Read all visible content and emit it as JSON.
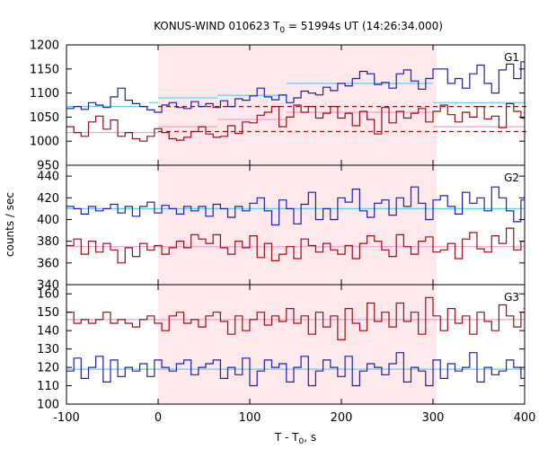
{
  "chart_data": {
    "type": "line",
    "title_prefix": "KONUS-WIND 010623 T",
    "title_sub": "0",
    "title_suffix": " = 51994s UT (14:26:34.000)",
    "xlabel_prefix": "T - T",
    "xlabel_sub": "0",
    "xlabel_suffix": ", s",
    "ylabel": "counts / sec",
    "xlim": [
      -100,
      400
    ],
    "xticks": [
      "-100",
      "0",
      "100",
      "200",
      "300",
      "400"
    ],
    "highlight_interval": [
      0,
      304
    ],
    "colors": {
      "highlight": "#fde8ec",
      "blue": "#1f1fa8",
      "red": "#9b0d14",
      "blue_fit": "#66ccee",
      "red_fit": "#ff99cc",
      "dashed": "#9b0d14"
    },
    "panels": [
      {
        "label": "G1",
        "ylim": [
          950,
          1200
        ],
        "yticks": [
          "950",
          "1000",
          "1050",
          "1100",
          "1150",
          "1200"
        ],
        "series": [
          {
            "color": "blue",
            "bin_width": 8,
            "x_start": -100,
            "values": [
              1068,
              1072,
              1066,
              1080,
              1075,
              1070,
              1092,
              1110,
              1085,
              1078,
              1072,
              1065,
              1060,
              1075,
              1080,
              1070,
              1068,
              1082,
              1072,
              1078,
              1070,
              1084,
              1072,
              1088,
              1085,
              1094,
              1110,
              1092,
              1086,
              1096,
              1080,
              1090,
              1104,
              1100,
              1096,
              1112,
              1105,
              1120,
              1115,
              1130,
              1145,
              1140,
              1118,
              1122,
              1110,
              1140,
              1148,
              1125,
              1108,
              1130,
              1150,
              1150,
              1120,
              1130,
              1110,
              1140,
              1158,
              1120,
              1100,
              1148,
              1160,
              1130,
              1165,
              1120,
              1080,
              1085,
              1092,
              1080,
              1098,
              1096,
              1098,
              1086,
              1094,
              1075,
              1092,
              1085,
              1100,
              1090,
              1078,
              1102,
              1098,
              1080
            ]
          },
          {
            "color": "red",
            "bin_width": 8,
            "x_start": -100,
            "values": [
              1030,
              1018,
              1010,
              1040,
              1052,
              1025,
              1044,
              1010,
              1018,
              1005,
              1000,
              1010,
              1026,
              1018,
              1005,
              1002,
              1008,
              1020,
              1030,
              1015,
              1008,
              1010,
              1032,
              1016,
              1040,
              1038,
              1054,
              1060,
              1072,
              1030,
              1050,
              1075,
              1060,
              1072,
              1048,
              1058,
              1072,
              1048,
              1058,
              1032,
              1062,
              1045,
              1015,
              1070,
              1038,
              1062,
              1048,
              1058,
              1068,
              1040,
              1062,
              1075,
              1055,
              1040,
              1060,
              1050,
              1072,
              1046,
              1052,
              1028,
              1078,
              1062,
              1048,
              1058,
              1035,
              1052,
              1030,
              1040,
              1045,
              1025,
              1048,
              1032,
              1018,
              1028,
              1038,
              1022,
              1036,
              1015,
              1040,
              1008,
              1030,
              1015
            ]
          }
        ],
        "fits": [
          {
            "color": "blue_fit",
            "segments": [
              [
                -100,
                -10,
                1072
              ],
              [
                -10,
                0,
                1080
              ],
              [
                0,
                65,
                1090
              ],
              [
                65,
                140,
                1095
              ],
              [
                140,
                300,
                1120
              ],
              [
                300,
                400,
                1080
              ]
            ]
          },
          {
            "color": "red_fit",
            "segments": [
              [
                -100,
                0,
                1018
              ],
              [
                0,
                65,
                1030
              ],
              [
                65,
                140,
                1045
              ],
              [
                140,
                300,
                1060
              ],
              [
                300,
                400,
                1030
              ]
            ]
          }
        ],
        "dashed": [
          {
            "x0": 0,
            "x1": 404,
            "y": 1072
          },
          {
            "x0": 0,
            "x1": 404,
            "y": 1020
          }
        ]
      },
      {
        "label": "G2",
        "ylim": [
          340,
          450
        ],
        "yticks": [
          "340",
          "360",
          "380",
          "400",
          "420",
          "440"
        ],
        "series": [
          {
            "color": "blue",
            "bin_width": 8,
            "x_start": -100,
            "values": [
              412,
              410,
              405,
              412,
              408,
              410,
              414,
              406,
              412,
              403,
              412,
              416,
              406,
              413,
              410,
              405,
              412,
              408,
              412,
              403,
              414,
              410,
              402,
              412,
              408,
              415,
              420,
              408,
              395,
              418,
              410,
              396,
              414,
              425,
              400,
              410,
              400,
              420,
              416,
              428,
              408,
              402,
              415,
              418,
              404,
              420,
              412,
              430,
              415,
              400,
              418,
              422,
              412,
              405,
              425,
              415,
              420,
              408,
              430,
              420,
              408,
              398,
              418,
              402,
              420,
              410,
              412,
              400,
              408,
              415,
              425,
              418,
              436,
              412,
              408,
              415,
              410,
              420,
              416,
              412,
              410,
              424
            ]
          },
          {
            "color": "red",
            "bin_width": 8,
            "x_start": -100,
            "values": [
              376,
              382,
              368,
              380,
              370,
              378,
              372,
              360,
              374,
              366,
              378,
              372,
              376,
              368,
              374,
              380,
              374,
              386,
              382,
              378,
              386,
              374,
              368,
              380,
              374,
              385,
              365,
              378,
              362,
              368,
              375,
              364,
              382,
              376,
              370,
              378,
              372,
              368,
              376,
              364,
              378,
              385,
              380,
              372,
              366,
              386,
              375,
              368,
              380,
              384,
              370,
              372,
              378,
              364,
              382,
              388,
              373,
              370,
              385,
              378,
              392,
              372,
              380,
              370,
              375,
              372,
              378,
              370,
              385,
              362,
              368,
              370,
              376,
              392,
              376,
              380,
              366,
              374,
              378,
              372,
              375,
              380
            ]
          }
        ],
        "fits": [
          {
            "color": "blue_fit",
            "segments": [
              [
                -100,
                400,
                410
              ]
            ]
          },
          {
            "color": "red_fit",
            "segments": [
              [
                -100,
                400,
                375
              ]
            ]
          }
        ],
        "dashed": []
      },
      {
        "label": "G3",
        "ylim": [
          100,
          165
        ],
        "yticks": [
          "100",
          "110",
          "120",
          "130",
          "140",
          "150",
          "160"
        ],
        "series": [
          {
            "color": "blue",
            "bin_width": 8,
            "x_start": -100,
            "values": [
              118,
              125,
              114,
              120,
              126,
              112,
              124,
              115,
              120,
              118,
              122,
              115,
              124,
              120,
              118,
              122,
              124,
              116,
              120,
              122,
              124,
              114,
              120,
              116,
              125,
              110,
              118,
              124,
              120,
              122,
              112,
              120,
              126,
              110,
              118,
              124,
              120,
              115,
              126,
              110,
              118,
              122,
              120,
              116,
              122,
              128,
              112,
              120,
              118,
              110,
              124,
              114,
              122,
              118,
              120,
              128,
              112,
              120,
              116,
              118,
              124,
              120,
              114,
              125,
              122,
              118,
              115,
              120,
              122,
              116,
              118,
              122,
              126,
              114,
              120,
              112,
              124,
              118,
              120,
              122,
              116,
              120
            ]
          },
          {
            "color": "red",
            "bin_width": 8,
            "x_start": -100,
            "values": [
              150,
              144,
              146,
              144,
              146,
              150,
              144,
              146,
              144,
              142,
              146,
              148,
              144,
              140,
              148,
              150,
              144,
              146,
              142,
              148,
              150,
              145,
              138,
              148,
              140,
              146,
              150,
              143,
              148,
              145,
              152,
              144,
              148,
              138,
              150,
              142,
              148,
              135,
              152,
              144,
              140,
              155,
              145,
              150,
              142,
              155,
              145,
              150,
              138,
              158,
              148,
              140,
              152,
              144,
              148,
              138,
              150,
              145,
              140,
              154,
              148,
              142,
              150,
              160,
              145,
              140,
              146,
              152,
              138,
              150,
              140,
              148,
              144,
              145,
              150,
              140,
              148,
              142,
              146,
              150,
              145,
              148
            ]
          }
        ],
        "fits": [
          {
            "color": "blue_fit",
            "segments": [
              [
                -100,
                400,
                119
              ]
            ]
          },
          {
            "color": "red_fit",
            "segments": [
              [
                -100,
                400,
                146
              ]
            ]
          }
        ],
        "dashed": []
      }
    ]
  }
}
